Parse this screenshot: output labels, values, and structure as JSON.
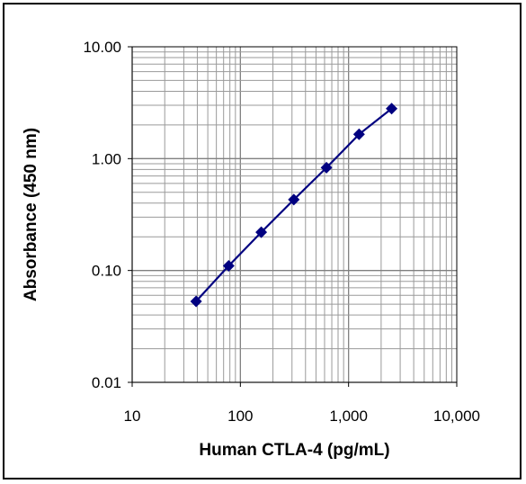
{
  "chart_data": {
    "type": "line",
    "title": "",
    "xlabel": "Human CTLA-4 (pg/mL)",
    "ylabel": "Absorbance (450 nm)",
    "x_scale": "log",
    "y_scale": "log",
    "xlim": [
      10,
      10000
    ],
    "ylim": [
      0.01,
      10
    ],
    "x_tick_labels": [
      "10",
      "100",
      "1,000",
      "10,000"
    ],
    "y_tick_labels": [
      "0.01",
      "0.10",
      "1.00",
      "10.00"
    ],
    "grid": true,
    "legend": "none",
    "series": [
      {
        "color": "#000080",
        "marker": "diamond",
        "x": [
          39,
          78,
          156,
          312,
          625,
          1250,
          2500
        ],
        "y": [
          0.053,
          0.11,
          0.22,
          0.43,
          0.83,
          1.65,
          2.8
        ]
      }
    ]
  }
}
